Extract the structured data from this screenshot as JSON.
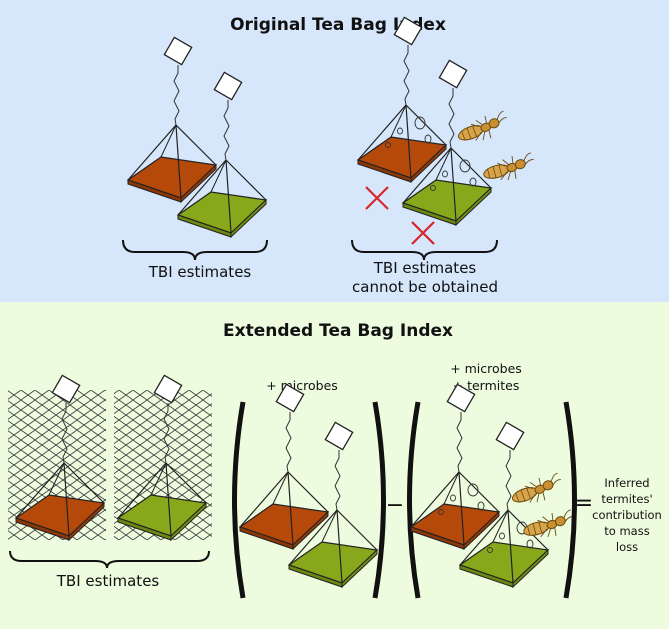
{
  "top_panel": {
    "title": "Original Tea Bag Index",
    "left_label": "TBI estimates",
    "right_label_line1": "TBI estimates",
    "right_label_line2": "cannot be obtained"
  },
  "bottom_panel": {
    "title": "Extended Tea Bag Index",
    "left_label": "TBI estimates",
    "term1_label": "+ microbes",
    "term2_label_line1": "+ microbes",
    "term2_label_line2": "+ termites",
    "minus_sign": "−",
    "equals_sign": "=",
    "result_line1": "Inferred",
    "result_line2": "termites'",
    "result_line3": "contribution",
    "result_line4": "to mass",
    "result_line5": "loss"
  },
  "colors": {
    "top_background": "#d6e6fb",
    "bottom_background": "#edfbdf",
    "rooibos_tea": "#b5490a",
    "green_tea": "#86a81a",
    "cross": "#d8252c",
    "termite": "#d8a44a",
    "mesh": "#3a3a3a"
  },
  "icons": [
    "tea-bag-icon",
    "termite-icon",
    "cross-icon",
    "mesh-bag-icon",
    "brace-icon",
    "parenthesis-icon"
  ]
}
